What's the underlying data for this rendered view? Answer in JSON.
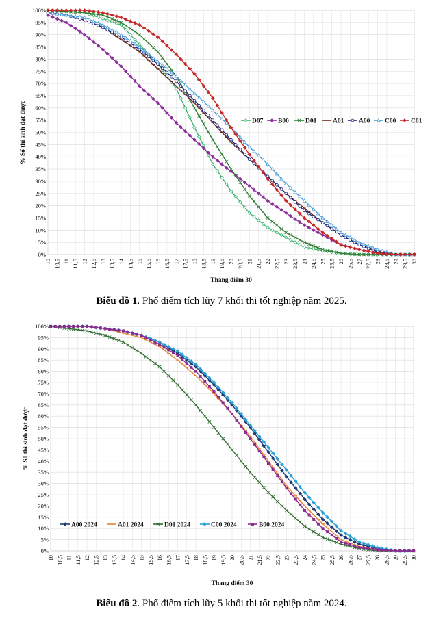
{
  "captions": [
    {
      "label": "Biểu đồ 1",
      "text": ". Phổ điểm tích lũy 7 khối thi tốt nghiệp năm 2025."
    },
    {
      "label": "Biểu đồ 2",
      "text": ". Phổ điểm tích lũy 5 khối thi tốt nghiệp năm 2024."
    }
  ],
  "chart_data": [
    {
      "type": "line",
      "title": "",
      "xlabel": "Thang điểm 30",
      "ylabel": "% Số thí sinh đạt được",
      "xlim": [
        10,
        30
      ],
      "ylim": [
        0,
        100
      ],
      "x_ticks": [
        "10",
        "10,5",
        "11",
        "11,5",
        "12",
        "12,5",
        "13",
        "13,5",
        "14",
        "14,5",
        "15",
        "15,5",
        "16",
        "16,5",
        "17",
        "17,5",
        "18",
        "18,5",
        "19",
        "19,5",
        "20",
        "20,5",
        "21",
        "21,5",
        "22",
        "22,5",
        "23",
        "23,5",
        "24",
        "24,5",
        "25",
        "25,5",
        "26",
        "26,5",
        "27",
        "27,5",
        "28",
        "28,5",
        "29",
        "29,5",
        "30"
      ],
      "y_ticks": [
        "0%",
        "5%",
        "10%",
        "15%",
        "20%",
        "25%",
        "30%",
        "35%",
        "40%",
        "45%",
        "50%",
        "55%",
        "60%",
        "65%",
        "70%",
        "75%",
        "80%",
        "85%",
        "90%",
        "95%",
        "100%"
      ],
      "grid": true,
      "legend_position": "right-middle",
      "series": [
        {
          "name": "D07",
          "color": "#3cb371",
          "marker": "open-diamond",
          "points": [
            [
              10,
              100
            ],
            [
              12,
              99
            ],
            [
              14,
              94
            ],
            [
              16,
              78
            ],
            [
              17,
              68
            ],
            [
              18,
              52
            ],
            [
              19,
              37
            ],
            [
              20,
              26
            ],
            [
              21,
              17
            ],
            [
              22,
              11
            ],
            [
              23,
              7
            ],
            [
              24,
              3
            ],
            [
              25,
              1.5
            ],
            [
              26,
              0.5
            ],
            [
              27,
              0
            ],
            [
              30,
              0
            ]
          ]
        },
        {
          "name": "B00",
          "color": "#8b2f9b",
          "marker": "diamond",
          "points": [
            [
              10,
              98
            ],
            [
              11,
              95
            ],
            [
              12,
              90
            ],
            [
              13,
              84
            ],
            [
              14,
              77
            ],
            [
              15,
              69
            ],
            [
              16,
              62
            ],
            [
              17,
              54
            ],
            [
              18,
              47
            ],
            [
              19,
              40
            ],
            [
              20,
              34
            ],
            [
              21,
              28
            ],
            [
              22,
              22
            ],
            [
              23,
              17
            ],
            [
              24,
              12
            ],
            [
              25,
              8
            ],
            [
              26,
              4
            ],
            [
              27,
              2
            ],
            [
              28,
              0.5
            ],
            [
              29,
              0
            ],
            [
              30,
              0
            ]
          ]
        },
        {
          "name": "D01",
          "color": "#2e7d32",
          "marker": "cross",
          "points": [
            [
              10,
              100
            ],
            [
              12,
              99
            ],
            [
              13,
              98
            ],
            [
              14,
              95
            ],
            [
              15,
              90
            ],
            [
              16,
              83
            ],
            [
              17,
              73
            ],
            [
              18,
              60
            ],
            [
              19,
              47
            ],
            [
              20,
              35
            ],
            [
              21,
              24
            ],
            [
              22,
              15
            ],
            [
              23,
              9
            ],
            [
              24,
              5
            ],
            [
              25,
              2
            ],
            [
              26,
              0.5
            ],
            [
              27,
              0
            ],
            [
              30,
              0
            ]
          ]
        },
        {
          "name": "A01",
          "color": "#6d2b1f",
          "marker": "dash",
          "points": [
            [
              10,
              99
            ],
            [
              11,
              98
            ],
            [
              12,
              96
            ],
            [
              13,
              93
            ],
            [
              14,
              88
            ],
            [
              15,
              83
            ],
            [
              16,
              76
            ],
            [
              17,
              69
            ],
            [
              18,
              62
            ],
            [
              19,
              54
            ],
            [
              20,
              46
            ],
            [
              21,
              39
            ],
            [
              22,
              32
            ],
            [
              23,
              25
            ],
            [
              24,
              19
            ],
            [
              25,
              13
            ],
            [
              26,
              8
            ],
            [
              27,
              4
            ],
            [
              28,
              1.5
            ],
            [
              29,
              0
            ],
            [
              30,
              0
            ]
          ]
        },
        {
          "name": "A00",
          "color": "#1a237e",
          "marker": "open-circle",
          "points": [
            [
              10,
              99
            ],
            [
              11,
              98
            ],
            [
              12,
              96
            ],
            [
              13,
              93
            ],
            [
              14,
              89
            ],
            [
              15,
              84
            ],
            [
              16,
              78
            ],
            [
              17,
              71
            ],
            [
              18,
              63
            ],
            [
              19,
              55
            ],
            [
              20,
              47
            ],
            [
              21,
              39
            ],
            [
              22,
              32
            ],
            [
              23,
              25
            ],
            [
              24,
              18
            ],
            [
              25,
              13
            ],
            [
              26,
              8
            ],
            [
              27,
              4
            ],
            [
              28,
              1
            ],
            [
              29,
              0
            ],
            [
              30,
              0
            ]
          ]
        },
        {
          "name": "C00",
          "color": "#4a9fd6",
          "marker": "open-triangle",
          "points": [
            [
              10,
              99
            ],
            [
              11,
              98
            ],
            [
              12,
              97
            ],
            [
              13,
              94
            ],
            [
              14,
              90
            ],
            [
              15,
              85
            ],
            [
              16,
              79
            ],
            [
              17,
              73
            ],
            [
              18,
              66
            ],
            [
              19,
              59
            ],
            [
              20,
              52
            ],
            [
              21,
              44
            ],
            [
              22,
              37
            ],
            [
              23,
              29
            ],
            [
              24,
              22
            ],
            [
              25,
              15
            ],
            [
              26,
              9
            ],
            [
              27,
              5
            ],
            [
              28,
              2
            ],
            [
              29,
              0
            ],
            [
              30,
              0
            ]
          ]
        },
        {
          "name": "C01",
          "color": "#c62828",
          "marker": "diamond",
          "points": [
            [
              10,
              100
            ],
            [
              12,
              100
            ],
            [
              13,
              99
            ],
            [
              14,
              97
            ],
            [
              15,
              94
            ],
            [
              16,
              89
            ],
            [
              17,
              82
            ],
            [
              18,
              74
            ],
            [
              19,
              64
            ],
            [
              20,
              52
            ],
            [
              21,
              41
            ],
            [
              22,
              31
            ],
            [
              23,
              22
            ],
            [
              24,
              15
            ],
            [
              25,
              9
            ],
            [
              26,
              4
            ],
            [
              27,
              2
            ],
            [
              28,
              0.5
            ],
            [
              29,
              0
            ],
            [
              30,
              0
            ]
          ]
        }
      ]
    },
    {
      "type": "line",
      "title": "",
      "xlabel": "Thang điểm 30",
      "ylabel": "% Số thí sinh đạt được",
      "xlim": [
        10,
        30
      ],
      "ylim": [
        0,
        100
      ],
      "x_ticks": [
        "10",
        "10,5",
        "11",
        "11,5",
        "12",
        "12,5",
        "13",
        "13,5",
        "14",
        "14,5",
        "15",
        "15,5",
        "16",
        "16,5",
        "17",
        "17,5",
        "18",
        "18,5",
        "19",
        "19,5",
        "20",
        "20,5",
        "21",
        "21,5",
        "22",
        "22,5",
        "23",
        "23,5",
        "24",
        "24,5",
        "25",
        "25,5",
        "26",
        "26,5",
        "27",
        "27,5",
        "28",
        "28,5",
        "29",
        "29,5",
        "30"
      ],
      "y_ticks": [
        "0%",
        "5%",
        "10%",
        "15%",
        "20%",
        "25%",
        "30%",
        "35%",
        "40%",
        "45%",
        "50%",
        "55%",
        "60%",
        "65%",
        "70%",
        "75%",
        "80%",
        "85%",
        "90%",
        "95%",
        "100%"
      ],
      "grid": true,
      "legend_position": "bottom-left",
      "series": [
        {
          "name": "A00 2024",
          "color": "#1f3a6e",
          "marker": "diamond",
          "points": [
            [
              10,
              100
            ],
            [
              12,
              100
            ],
            [
              13,
              99
            ],
            [
              14,
              98
            ],
            [
              15,
              96
            ],
            [
              16,
              93
            ],
            [
              17,
              88
            ],
            [
              18,
              82
            ],
            [
              19,
              74
            ],
            [
              20,
              65
            ],
            [
              21,
              55
            ],
            [
              22,
              44
            ],
            [
              23,
              33
            ],
            [
              24,
              23
            ],
            [
              25,
              14
            ],
            [
              26,
              7
            ],
            [
              27,
              3
            ],
            [
              28,
              1
            ],
            [
              29,
              0
            ],
            [
              30,
              0
            ]
          ]
        },
        {
          "name": "A01 2024",
          "color": "#e8853a",
          "marker": "dash",
          "points": [
            [
              10,
              100
            ],
            [
              12,
              100
            ],
            [
              13,
              99
            ],
            [
              14,
              97
            ],
            [
              15,
              95
            ],
            [
              16,
              91
            ],
            [
              17,
              85
            ],
            [
              18,
              78
            ],
            [
              19,
              70
            ],
            [
              20,
              61
            ],
            [
              21,
              51
            ],
            [
              22,
              40
            ],
            [
              23,
              29
            ],
            [
              24,
              20
            ],
            [
              25,
              12
            ],
            [
              26,
              5
            ],
            [
              27,
              2
            ],
            [
              28,
              0.5
            ],
            [
              29,
              0
            ],
            [
              30,
              0
            ]
          ]
        },
        {
          "name": "D01 2024",
          "color": "#2e6b2e",
          "marker": "cross",
          "points": [
            [
              10,
              100
            ],
            [
              11,
              99
            ],
            [
              12,
              98
            ],
            [
              13,
              96
            ],
            [
              14,
              93
            ],
            [
              15,
              88
            ],
            [
              16,
              82
            ],
            [
              17,
              74
            ],
            [
              18,
              65
            ],
            [
              19,
              55
            ],
            [
              20,
              45
            ],
            [
              21,
              35
            ],
            [
              22,
              26
            ],
            [
              23,
              18
            ],
            [
              24,
              11
            ],
            [
              25,
              6
            ],
            [
              26,
              3
            ],
            [
              27,
              1
            ],
            [
              28,
              0
            ],
            [
              30,
              0
            ]
          ]
        },
        {
          "name": "C00 2024",
          "color": "#2aa0d8",
          "marker": "diamond",
          "points": [
            [
              10,
              100
            ],
            [
              12,
              100
            ],
            [
              13,
              99
            ],
            [
              14,
              98
            ],
            [
              15,
              96
            ],
            [
              16,
              93
            ],
            [
              17,
              89
            ],
            [
              18,
              83
            ],
            [
              19,
              75
            ],
            [
              20,
              66
            ],
            [
              21,
              56
            ],
            [
              22,
              46
            ],
            [
              23,
              36
            ],
            [
              24,
              26
            ],
            [
              25,
              17
            ],
            [
              26,
              9
            ],
            [
              27,
              4
            ],
            [
              28,
              1.5
            ],
            [
              29,
              0
            ],
            [
              30,
              0
            ]
          ]
        },
        {
          "name": "B00 2024",
          "color": "#8a2b8f",
          "marker": "square",
          "points": [
            [
              10,
              100
            ],
            [
              12,
              100
            ],
            [
              13,
              99
            ],
            [
              14,
              98
            ],
            [
              15,
              96
            ],
            [
              16,
              92
            ],
            [
              17,
              87
            ],
            [
              18,
              80
            ],
            [
              19,
              71
            ],
            [
              20,
              61
            ],
            [
              21,
              50
            ],
            [
              22,
              39
            ],
            [
              23,
              28
            ],
            [
              24,
              18
            ],
            [
              25,
              10
            ],
            [
              26,
              4
            ],
            [
              27,
              1.5
            ],
            [
              28,
              0.5
            ],
            [
              29,
              0
            ],
            [
              30,
              0
            ]
          ]
        }
      ]
    }
  ]
}
